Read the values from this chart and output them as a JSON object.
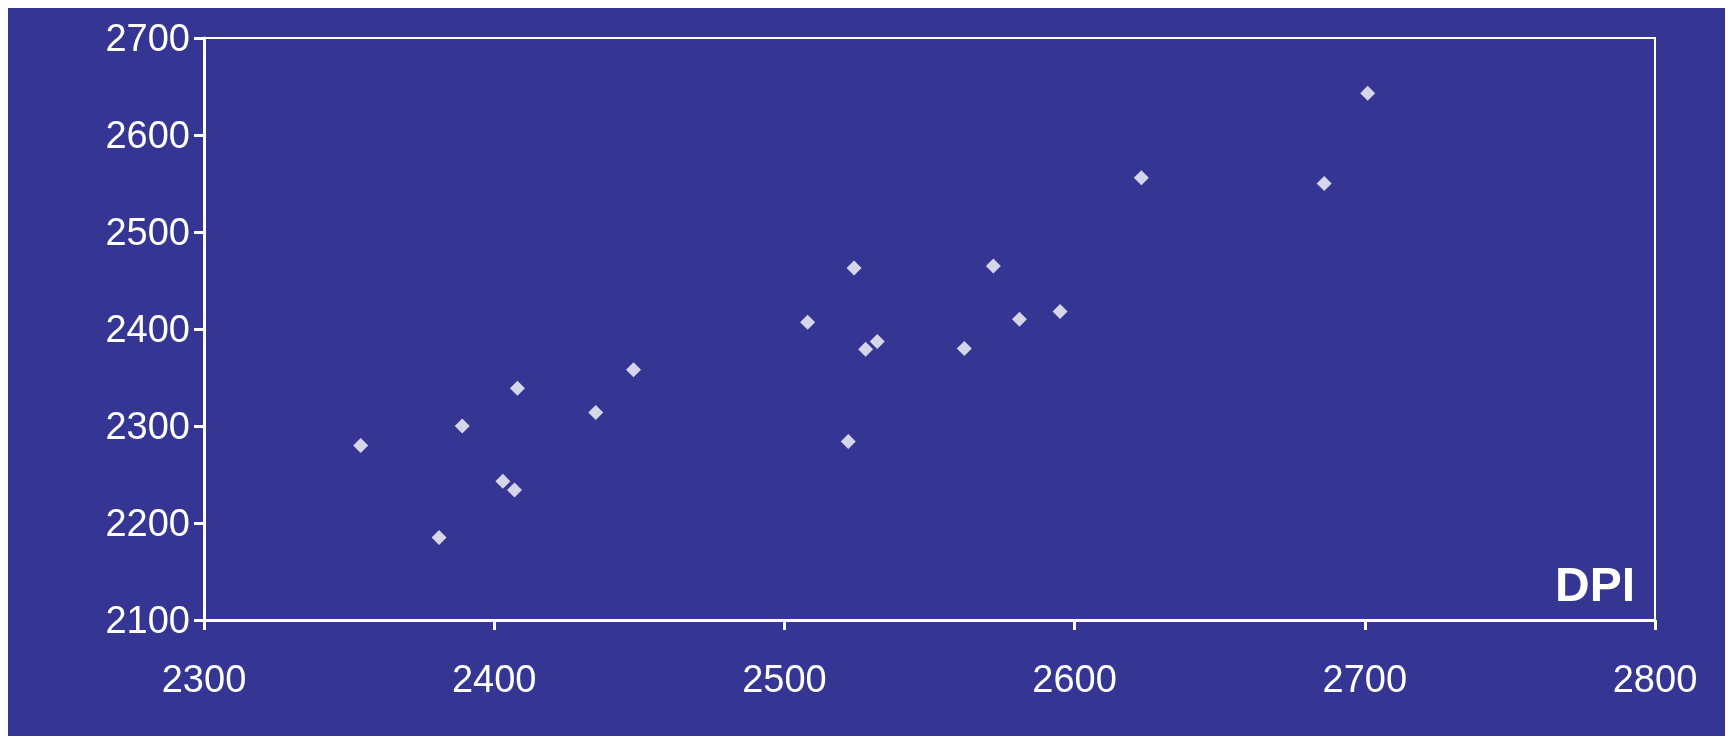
{
  "chart_data": {
    "type": "scatter",
    "annotations": [
      "DPI"
    ],
    "x": [
      2354,
      2381,
      2389,
      2403,
      2407,
      2408,
      2435,
      2448,
      2508,
      2524,
      2522,
      2528,
      2532,
      2562,
      2572,
      2581,
      2595,
      2623,
      2686,
      2701
    ],
    "values": [
      2280,
      2185,
      2300,
      2243,
      2234,
      2339,
      2314,
      2358,
      2407,
      2463,
      2284,
      2379,
      2387,
      2380,
      2465,
      2410,
      2418,
      2556,
      2550,
      2643
    ],
    "color": "#ffffff",
    "marker": "diamond",
    "grid": false,
    "xlim": [
      2300,
      2800
    ],
    "xticks": [
      2300,
      2400,
      2500,
      2600,
      2700,
      2800
    ],
    "ylim": [
      2100,
      2700
    ],
    "yticks": [
      2100,
      2200,
      2300,
      2400,
      2500,
      2600,
      2700
    ]
  }
}
